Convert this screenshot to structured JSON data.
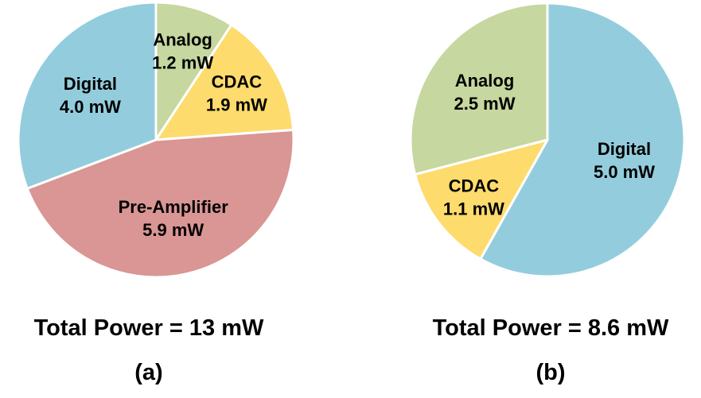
{
  "chart_data": [
    {
      "type": "pie",
      "panel_label": "(a)",
      "total_label": "Total Power = 13 mW",
      "start": "12 o'clock",
      "direction": "clockwise",
      "slices": [
        {
          "name": "Analog",
          "value": 1.2,
          "label": "1.2 mW",
          "color": "#c6d79f"
        },
        {
          "name": "CDAC",
          "value": 1.9,
          "label": "1.9 mW",
          "color": "#fddb6d"
        },
        {
          "name": "Pre-Amplifier",
          "value": 5.9,
          "label": "5.9 mW",
          "color": "#d99694"
        },
        {
          "name": "Digital",
          "value": 4.0,
          "label": "4.0 mW",
          "color": "#93cddd"
        }
      ]
    },
    {
      "type": "pie",
      "panel_label": "(b)",
      "total_label": "Total Power = 8.6 mW",
      "start": "12 o'clock",
      "direction": "clockwise",
      "slices": [
        {
          "name": "Digital",
          "value": 5.0,
          "label": "5.0 mW",
          "color": "#93cddd"
        },
        {
          "name": "CDAC",
          "value": 1.1,
          "label": "1.1 mW",
          "color": "#fddb6d"
        },
        {
          "name": "Analog",
          "value": 2.5,
          "label": "2.5 mW",
          "color": "#c6d79f"
        }
      ]
    }
  ]
}
